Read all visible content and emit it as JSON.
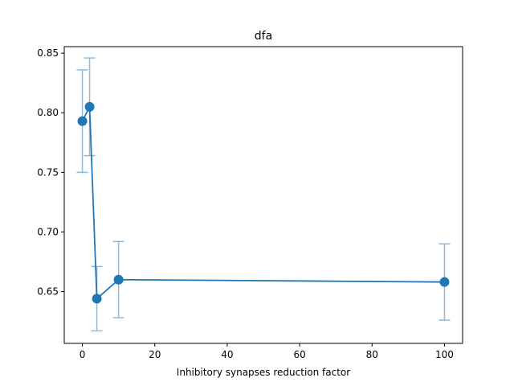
{
  "chart_data": {
    "type": "line",
    "title": "dfa",
    "xlabel": "Inhibitory synapses reduction factor",
    "ylabel": "",
    "xlim": [
      -5,
      105
    ],
    "ylim": [
      0.6065,
      0.8555
    ],
    "x_ticks": [
      0,
      20,
      40,
      60,
      80,
      100
    ],
    "x_tick_labels": [
      "0",
      "20",
      "40",
      "60",
      "80",
      "100"
    ],
    "y_ticks": [
      0.65,
      0.7,
      0.75,
      0.8,
      0.85
    ],
    "y_tick_labels": [
      "0.65",
      "0.70",
      "0.75",
      "0.80",
      "0.85"
    ],
    "grid": false,
    "legend": "none",
    "colors": {
      "line": "#1f77b4",
      "marker": "#1f77b4",
      "errorbar": "#8fb9d9"
    },
    "series": [
      {
        "x": [
          0,
          2,
          4,
          10,
          100
        ],
        "y": [
          0.793,
          0.805,
          0.644,
          0.66,
          0.658
        ],
        "yerr": [
          0.043,
          0.041,
          0.027,
          0.032,
          0.032
        ]
      }
    ]
  }
}
